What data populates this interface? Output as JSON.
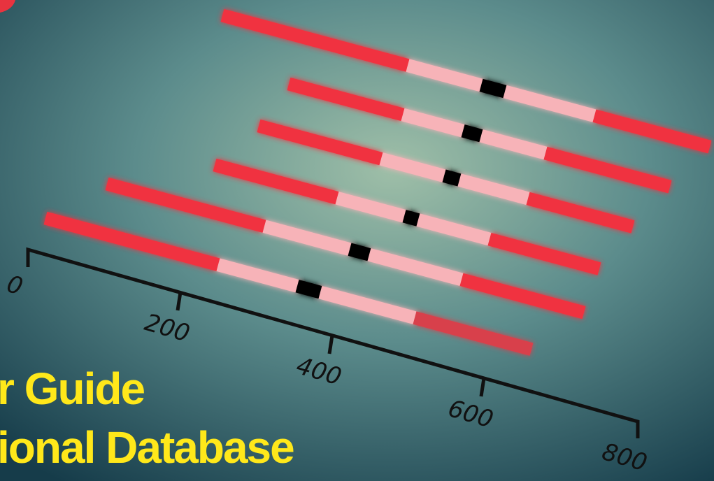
{
  "axis": {
    "ticks": [
      "0",
      "200",
      "400",
      "600",
      "800"
    ]
  },
  "title": {
    "line1": "r Guide",
    "line2": "ional Database"
  }
}
